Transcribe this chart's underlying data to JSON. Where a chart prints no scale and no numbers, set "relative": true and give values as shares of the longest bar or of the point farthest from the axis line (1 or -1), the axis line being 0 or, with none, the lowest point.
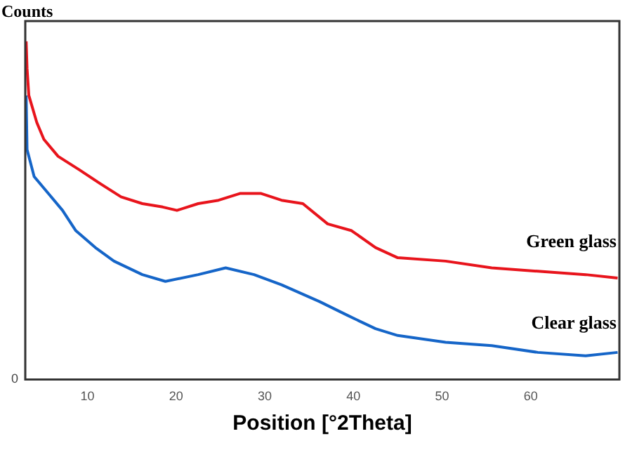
{
  "chart_data": {
    "type": "line",
    "ylabel": "Counts",
    "xlabel": "Position [°2Theta]",
    "relative": true,
    "xlim": [
      3,
      70
    ],
    "xticks": [
      10,
      20,
      30,
      40,
      50,
      60
    ],
    "grid": false,
    "legend": false,
    "marker": "none",
    "line_style": "solid",
    "annotations": [
      "0"
    ],
    "series": [
      {
        "name": "Green glass",
        "color": "#e8141c",
        "x": [
          3.1,
          3.2,
          3.4,
          4.3,
          5.1,
          6.7,
          9.1,
          11.4,
          13.8,
          16.2,
          18.5,
          20.1,
          22.5,
          24.8,
          27.2,
          29.6,
          31.9,
          34.3,
          37.1,
          39.8,
          42.5,
          45.0,
          50.4,
          55.6,
          60.8,
          66.2,
          69.8
        ],
        "values": [
          1.0,
          0.92,
          0.84,
          0.76,
          0.71,
          0.66,
          0.62,
          0.58,
          0.54,
          0.52,
          0.51,
          0.5,
          0.52,
          0.53,
          0.55,
          0.55,
          0.53,
          0.52,
          0.46,
          0.44,
          0.39,
          0.36,
          0.35,
          0.33,
          0.32,
          0.31,
          0.3
        ]
      },
      {
        "name": "Clear glass",
        "color": "#1565c8",
        "x": [
          3.1,
          3.2,
          4.0,
          5.6,
          7.2,
          8.7,
          10.9,
          13.0,
          16.2,
          18.8,
          22.5,
          25.6,
          28.8,
          31.9,
          36.2,
          39.3,
          42.5,
          45.0,
          50.4,
          55.6,
          60.8,
          66.2,
          69.8
        ],
        "values": [
          0.84,
          0.68,
          0.6,
          0.55,
          0.5,
          0.44,
          0.39,
          0.35,
          0.31,
          0.29,
          0.31,
          0.33,
          0.31,
          0.28,
          0.23,
          0.19,
          0.15,
          0.13,
          0.11,
          0.1,
          0.08,
          0.07,
          0.08
        ]
      }
    ]
  }
}
